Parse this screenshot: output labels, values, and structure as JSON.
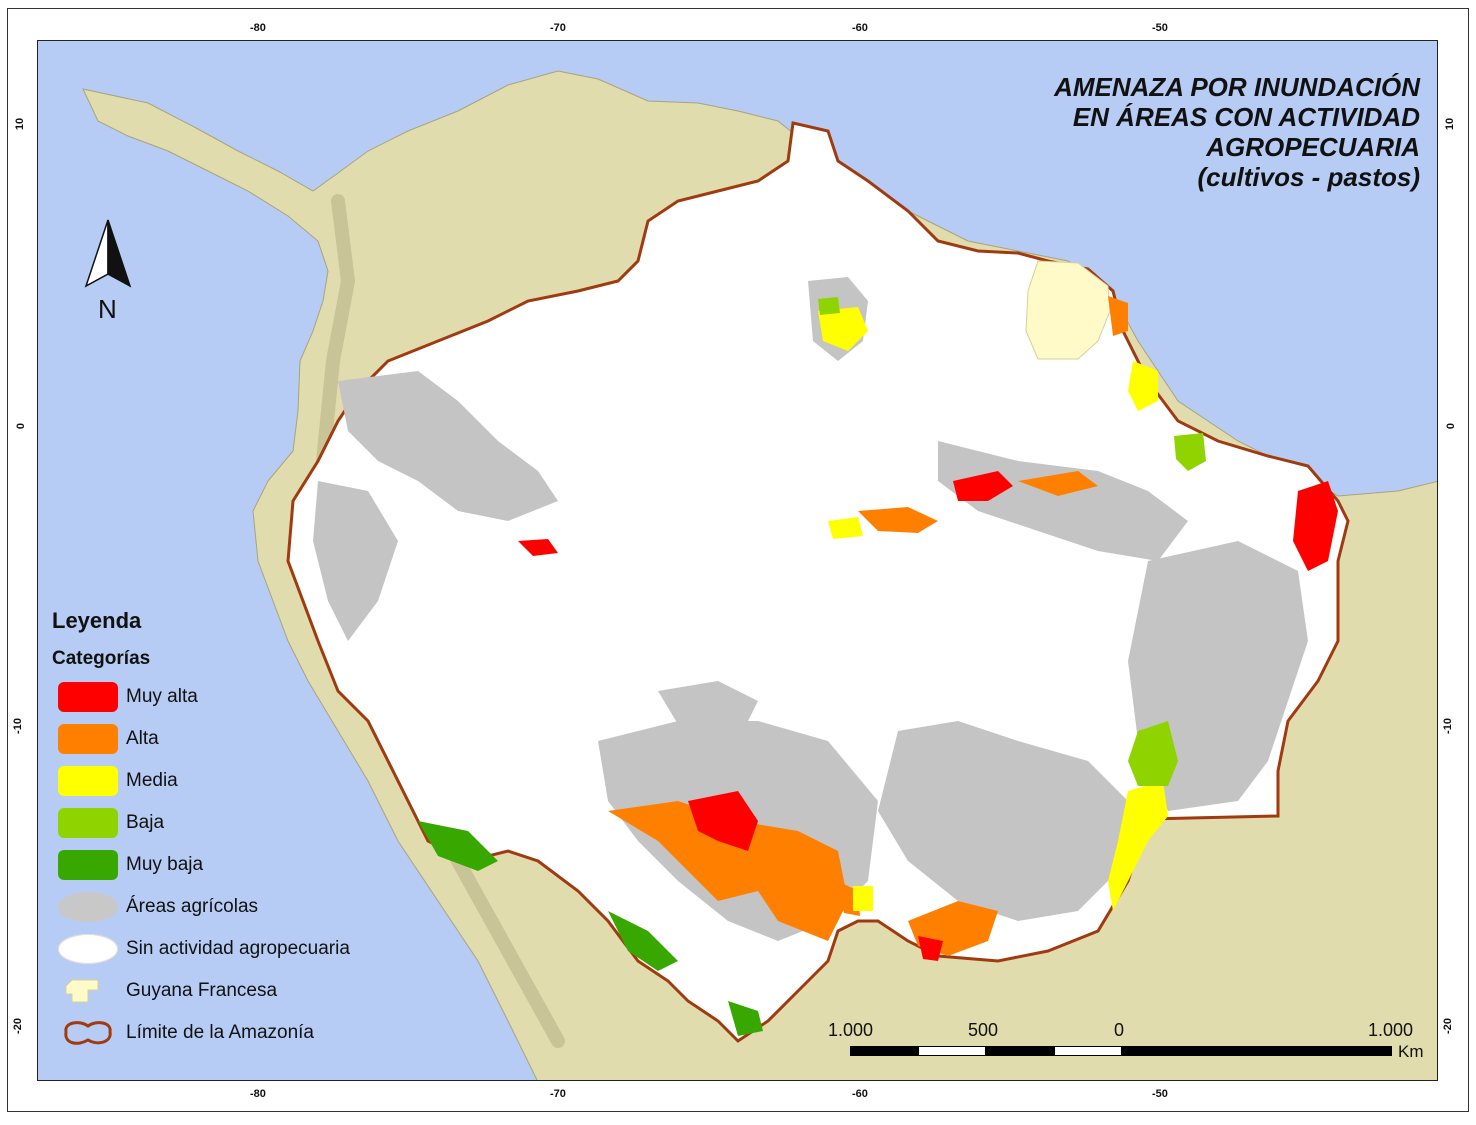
{
  "title": {
    "line1": "AMENAZA POR INUNDACIÓN",
    "line2": "EN ÁREAS CON ACTIVIDAD",
    "line3": "AGROPECUARIA",
    "line4": "(cultivos - pastos)"
  },
  "north_arrow": {
    "label": "N"
  },
  "graticule": {
    "top_ticks": [
      "-80",
      "-70",
      "-60",
      "-50"
    ],
    "bottom_ticks": [
      "-80",
      "-70",
      "-60",
      "-50"
    ],
    "left_ticks": [
      "10",
      "0",
      "-10",
      "-20"
    ],
    "right_ticks": [
      "10",
      "0",
      "-10",
      "-20"
    ]
  },
  "legend": {
    "title": "Leyenda",
    "subtitle": "Categorías",
    "items": [
      {
        "label": "Muy alta",
        "color": "#ff0000",
        "icon": "swatch"
      },
      {
        "label": "Alta",
        "color": "#ff8000",
        "icon": "swatch"
      },
      {
        "label": "Media",
        "color": "#ffff00",
        "icon": "swatch"
      },
      {
        "label": "Baja",
        "color": "#8fd400",
        "icon": "swatch"
      },
      {
        "label": "Muy baja",
        "color": "#38a800",
        "icon": "swatch"
      },
      {
        "label": "Áreas agrícolas",
        "color": "#c8c8c8",
        "icon": "blob"
      },
      {
        "label": "Sin actividad agropecuaria",
        "color": "#ffffff",
        "icon": "blob"
      },
      {
        "label": "Guyana Francesa",
        "color": "#fffac8",
        "icon": "patch"
      },
      {
        "label": "Límite de la Amazonía",
        "color": "#a03a10",
        "icon": "outline"
      }
    ]
  },
  "scale_bar": {
    "labels": [
      "1.000",
      "500",
      "0",
      "1.000"
    ],
    "unit": "Km"
  },
  "colors": {
    "ocean": "#b7ccf4",
    "land": "#e0dcae",
    "boundary": "#a03a10"
  }
}
